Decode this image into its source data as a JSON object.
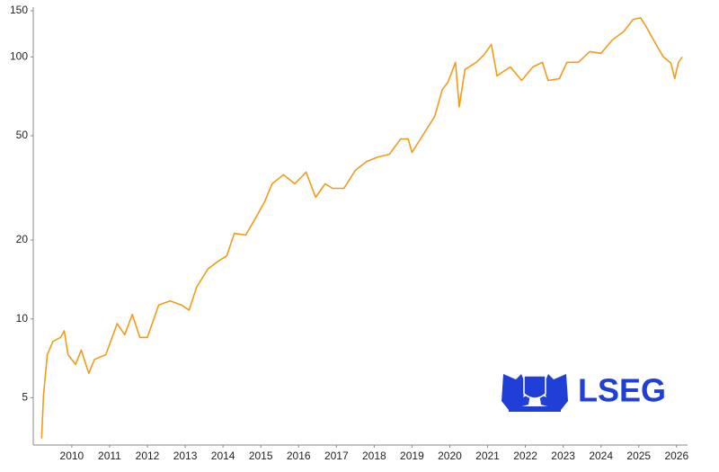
{
  "chart_data": {
    "type": "line",
    "watermark": "LSEG",
    "log_scale": true,
    "color": "#f29b1a",
    "x": [
      2009.2,
      2009.25,
      2009.35,
      2009.5,
      2009.7,
      2009.8,
      2009.9,
      2010.1,
      2010.25,
      2010.45,
      2010.6,
      2010.9,
      2011.2,
      2011.4,
      2011.6,
      2011.8,
      2012.0,
      2012.3,
      2012.6,
      2012.9,
      2013.1,
      2013.3,
      2013.6,
      2013.9,
      2014.1,
      2014.3,
      2014.6,
      2014.9,
      2015.1,
      2015.3,
      2015.6,
      2015.9,
      2016.2,
      2016.45,
      2016.7,
      2016.9,
      2017.2,
      2017.5,
      2017.8,
      2018.1,
      2018.4,
      2018.7,
      2018.9,
      2019.0,
      2019.3,
      2019.6,
      2019.8,
      2019.95,
      2020.15,
      2020.25,
      2020.4,
      2020.7,
      2020.9,
      2021.1,
      2021.25,
      2021.6,
      2021.9,
      2022.2,
      2022.45,
      2022.6,
      2022.9,
      2023.1,
      2023.4,
      2023.7,
      2024.0,
      2024.3,
      2024.6,
      2024.85,
      2025.05,
      2025.2,
      2025.45,
      2025.65,
      2025.85,
      2025.95,
      2026.05,
      2026.15
    ],
    "values": [
      3.5,
      5.1,
      7.3,
      8.2,
      8.5,
      9.0,
      7.3,
      6.7,
      7.6,
      6.2,
      7.0,
      7.3,
      9.6,
      8.7,
      10.4,
      8.5,
      8.5,
      11.3,
      11.7,
      11.3,
      10.8,
      13.2,
      15.5,
      16.7,
      17.4,
      21.2,
      20.9,
      24.8,
      28.0,
      32.8,
      35.5,
      32.8,
      36.3,
      29.1,
      32.8,
      31.5,
      31.5,
      36.9,
      39.9,
      41.5,
      42.5,
      48.6,
      48.6,
      43.2,
      50.6,
      59.2,
      75.0,
      80.0,
      95.4,
      64.5,
      89.5,
      95.4,
      101.6,
      111.6,
      84.7,
      91.6,
      81.3,
      91.6,
      95.4,
      81.3,
      82.6,
      95.4,
      95.4,
      104.8,
      103.2,
      116,
      125,
      139,
      141,
      130,
      112,
      100,
      94.6,
      82.6,
      95.4,
      100
    ],
    "xlim": [
      2008.98,
      2026.29
    ],
    "xticks": [
      2010,
      2011,
      2012,
      2013,
      2014,
      2015,
      2016,
      2017,
      2018,
      2019,
      2020,
      2021,
      2022,
      2023,
      2024,
      2025,
      2026
    ],
    "ylim": [
      3.3,
      150
    ],
    "yticks": [
      5,
      10,
      20,
      50,
      100,
      150
    ]
  }
}
